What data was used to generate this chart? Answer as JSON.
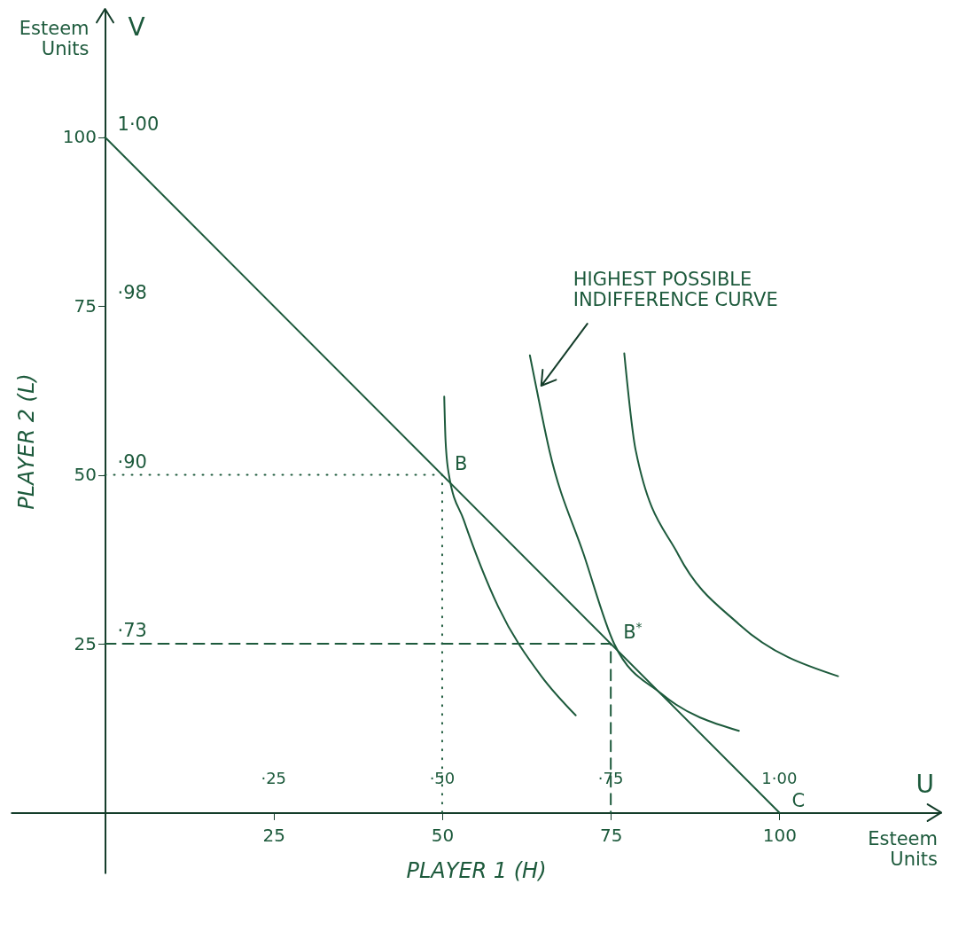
{
  "chart_data": {
    "type": "line",
    "xlabel": "PLAYER 1 (H)",
    "ylabel": "PLAYER 2 (L)",
    "x2label": "U",
    "xlim": [
      -14,
      124
    ],
    "ylim": [
      -9,
      119
    ],
    "xticks": [
      25,
      50,
      75,
      100
    ],
    "yticks": [
      25,
      50,
      75,
      100
    ],
    "x2lim": [
      -14,
      124
    ],
    "x2ticks": [
      {
        "value": 25,
        "label": "·25"
      },
      {
        "value": 50,
        "label": "·50"
      },
      {
        "value": 75,
        "label": "·75"
      },
      {
        "value": 100,
        "label": "1·00"
      }
    ],
    "series": [
      {
        "color": "#1d5a3c",
        "line_style": "solid",
        "x": [
          0,
          100
        ],
        "values": [
          100,
          0
        ]
      },
      {
        "color": "#1d5a3c",
        "line_style": "solid",
        "x": [
          50.3,
          50.5,
          51,
          53.2,
          58.3,
          64.7,
          69.8
        ],
        "values": [
          61.6,
          55,
          50,
          43.3,
          30.5,
          20.2,
          14.4
        ]
      },
      {
        "color": "#1d5a3c",
        "line_style": "solid",
        "x": [
          63,
          63.9,
          65.9,
          71,
          75.5,
          82.5,
          94
        ],
        "values": [
          67.7,
          63.2,
          53.6,
          38.2,
          25,
          17.6,
          12.1
        ]
      },
      {
        "color": "#1d5a3c",
        "line_style": "solid",
        "x": [
          77,
          78.7,
          85,
          94,
          108.7
        ],
        "values": [
          68,
          53.6,
          38.2,
          27.9,
          20.2
        ]
      },
      {
        "color": "#1d5a3c",
        "line_style": "dotted",
        "x": [
          0,
          50,
          50
        ],
        "values": [
          50,
          50,
          0
        ]
      },
      {
        "color": "#1d5a3c",
        "line_style": "dashed",
        "x": [
          0,
          75,
          75
        ],
        "values": [
          25,
          25,
          0
        ]
      }
    ],
    "annotations": [
      {
        "text": "HIGHEST POSSIBLE\nINDIFFERENCE CURVE",
        "x": 63.9,
        "y": 63.2
      },
      {
        "text": "B",
        "x": 50,
        "y": 50
      },
      {
        "text": "B$^{*}$",
        "x": 75,
        "y": 25
      },
      {
        "text": "C",
        "x": 100,
        "y": 0
      },
      "Esteem\nUnits",
      "V",
      "Esteem\nUnits",
      "1·00",
      "·98",
      "·90",
      "·73"
    ]
  }
}
